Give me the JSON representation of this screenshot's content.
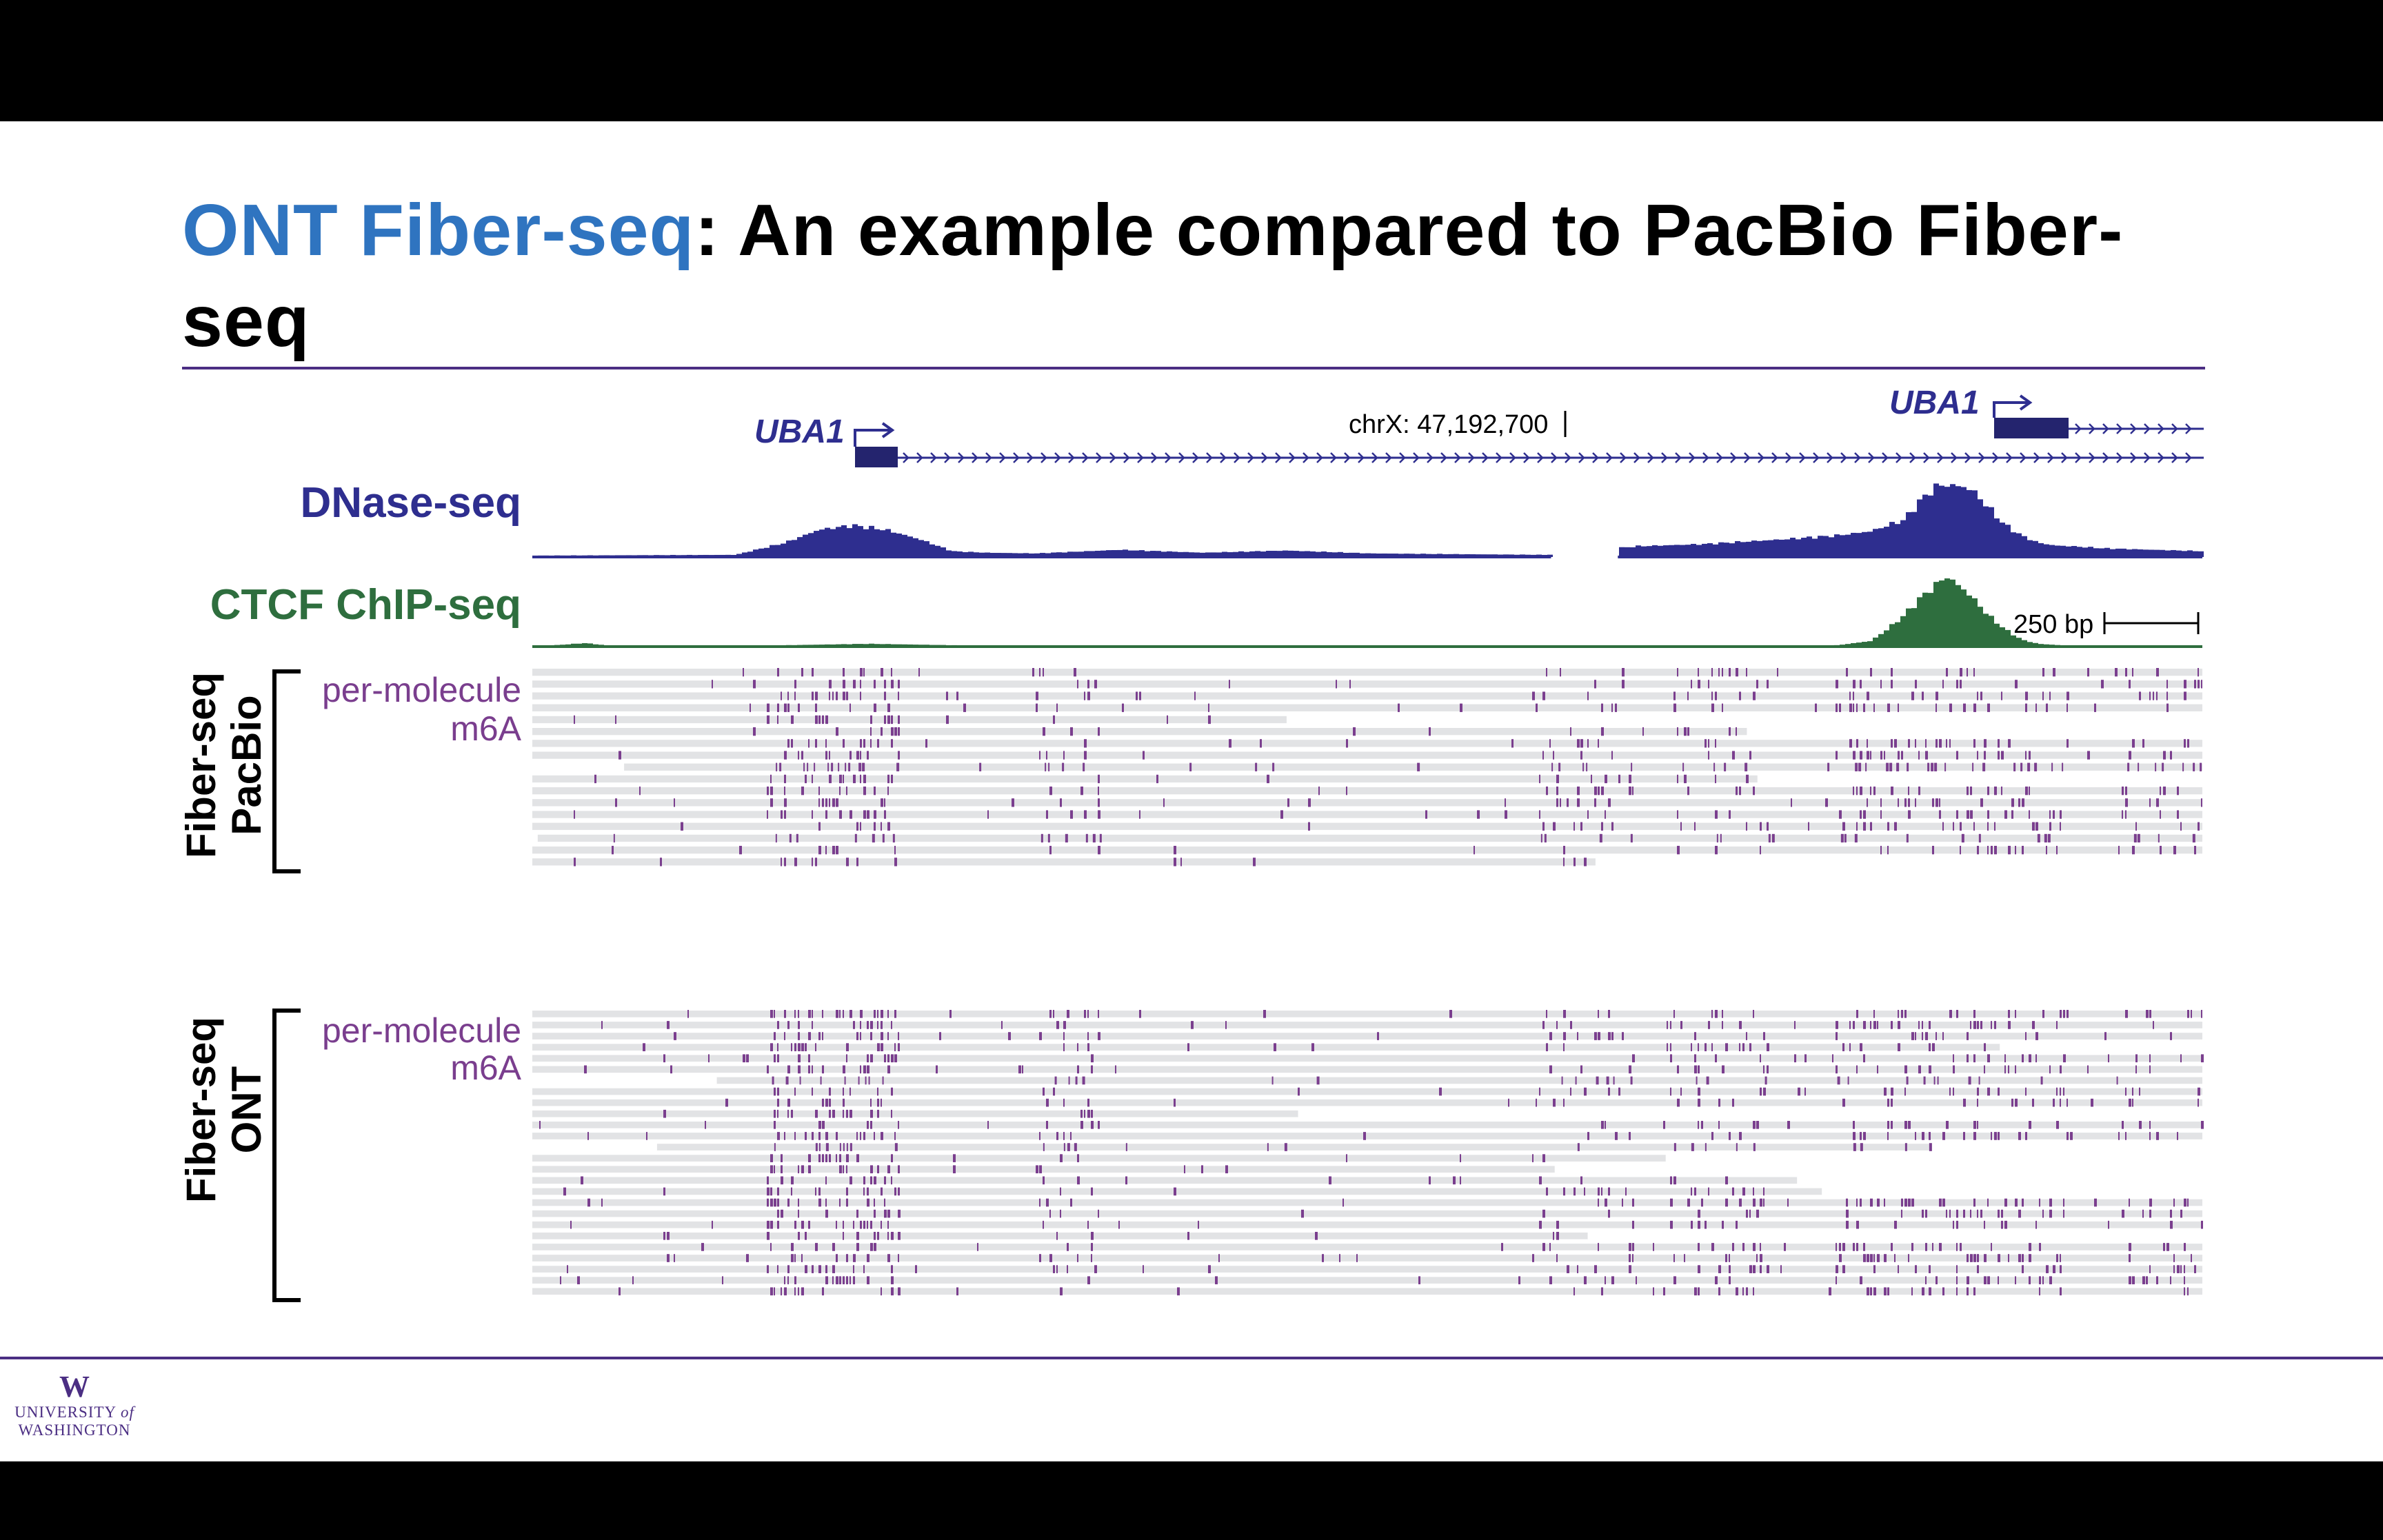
{
  "slide": {
    "title_accent": "ONT Fiber-seq",
    "title_rest": ": An example compared to PacBio Fiber-seq"
  },
  "colors": {
    "accent_blue": "#2f74c0",
    "navy": "#2e2e8f",
    "green": "#2e6e3e",
    "purple": "#7a3e8e",
    "uw_purple": "#4b2e83",
    "read_gray": "#e2e3e5"
  },
  "browser": {
    "genes": [
      {
        "name": "UBA1",
        "strand": "+"
      },
      {
        "name": "UBA1",
        "strand": "+"
      }
    ],
    "coordinate_label": "chrX: 47,192,700",
    "scale_bar_label": "250 bp",
    "tracks": {
      "dnase_label": "DNase-seq",
      "ctcf_label": "CTCF ChIP-seq",
      "pacbio_group_label": [
        "Fiber-seq",
        "PacBio"
      ],
      "pacbio_track_label": [
        "per-molecule",
        "m6A"
      ],
      "ont_group_label": [
        "Fiber-seq",
        "ONT"
      ],
      "ont_track_label": [
        "per-molecule",
        "m6A"
      ]
    }
  },
  "chart_data": {
    "type": "area",
    "x_unit": "relative position across the locus (0-1)",
    "series": [
      {
        "name": "DNase-seq",
        "x": [
          0.0,
          0.12,
          0.15,
          0.17,
          0.19,
          0.21,
          0.23,
          0.25,
          0.27,
          0.3,
          0.35,
          0.4,
          0.45,
          0.5,
          0.55,
          0.6066,
          0.66,
          0.7,
          0.75,
          0.78,
          0.8,
          0.82,
          0.83,
          0.84,
          0.85,
          0.86,
          0.87,
          0.88,
          0.89,
          0.9,
          0.91,
          0.92,
          0.94,
          0.97,
          1.0
        ],
        "y": [
          0.02,
          0.03,
          0.2,
          0.38,
          0.44,
          0.38,
          0.25,
          0.08,
          0.06,
          0.05,
          0.1,
          0.06,
          0.09,
          0.05,
          0.04,
          0.03,
          0.15,
          0.18,
          0.25,
          0.3,
          0.36,
          0.52,
          0.8,
          1.0,
          1.0,
          0.95,
          0.7,
          0.45,
          0.3,
          0.2,
          0.16,
          0.15,
          0.12,
          0.1,
          0.08
        ],
        "gap": [
          0.61,
          0.65
        ]
      },
      {
        "name": "CTCF ChIP-seq",
        "x": [
          0.0,
          0.03,
          0.05,
          0.1,
          0.2,
          0.3,
          0.5,
          0.7,
          0.78,
          0.8,
          0.81,
          0.82,
          0.83,
          0.84,
          0.845,
          0.85,
          0.86,
          0.87,
          0.88,
          0.89,
          0.9,
          0.92,
          1.0
        ],
        "y": [
          0.0,
          0.05,
          0.0,
          0.0,
          0.04,
          0.0,
          0.0,
          0.0,
          0.02,
          0.08,
          0.25,
          0.45,
          0.7,
          0.9,
          1.0,
          0.92,
          0.72,
          0.45,
          0.25,
          0.1,
          0.04,
          0.01,
          0.0
        ]
      }
    ],
    "read_rows": {
      "pacbio": 17,
      "ont": 26
    }
  }
}
